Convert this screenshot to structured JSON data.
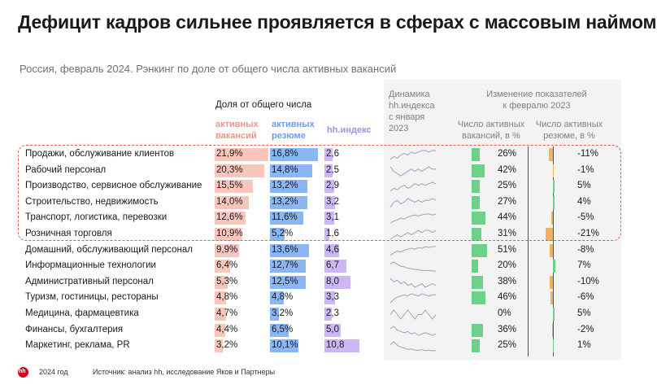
{
  "title": "Дефицит кадров сильнее проявляется в сферах с массовым наймом",
  "subtitle": "Россия, февраль 2024. Рэнкинг по доле от общего числа активных вакансий",
  "headers": {
    "share_group": "Доля от общего числа",
    "vac_line1": "активных",
    "vac_line2": "вакансий",
    "res_line1": "активных",
    "res_line2": "резюме",
    "hh": "hh.индекс",
    "dyn_line1": "Динамика",
    "dyn_line2": "hh.индекса",
    "dyn_line3": "с января",
    "dyn_line4": "2023",
    "change_line1": "Изменение показателей",
    "change_line2": "к февралю 2023",
    "chv_line1": "Число активных",
    "chv_line2": "вакансий, в %",
    "chr_line1": "Число активных",
    "chr_line2": "резюме, в %"
  },
  "colors": {
    "vacancies": "#f9c6bd",
    "resumes": "#8ab6f3",
    "hh_index": "#cbb7f3",
    "change_vacancies": "#6cd28a",
    "change_resumes_neg": "#f5b060",
    "change_resumes_pos": "#6cd28a",
    "highlight_box": "#e65a50"
  },
  "chart_data": {
    "type": "table",
    "title": "Дефицит кадров сильнее проявляется в сферах с массовым наймом",
    "categories": [
      "Продажи, обслуживание клиентов",
      "Рабочий персонал",
      "Производство, сервисное обслуживание",
      "Строительство, недвижимость",
      "Транспорт, логистика, перевозки",
      "Розничная торговля",
      "Домашний, обслуживающий персонал",
      "Информационные технологии",
      "Административный персонал",
      "Туризм, гостиницы, рестораны",
      "Медицина, фармацевтика",
      "Финансы, бухгалтерия",
      "Маркетинг, реклама, PR"
    ],
    "highlighted_rows": 6,
    "series": [
      {
        "name": "активных вакансий",
        "unit": "%",
        "values": [
          21.9,
          20.3,
          15.5,
          14.0,
          12.6,
          10.9,
          9.9,
          6.4,
          5.3,
          4.8,
          4.7,
          4.4,
          3.2
        ],
        "labels": [
          "21,9%",
          "20,3%",
          "15,5%",
          "14,0%",
          "12,6%",
          "10,9%",
          "9,9%",
          "6,4%",
          "5,3%",
          "4,8%",
          "4,7%",
          "4,4%",
          "3,2%"
        ]
      },
      {
        "name": "активных резюме",
        "unit": "%",
        "values": [
          16.8,
          14.8,
          13.2,
          13.2,
          11.6,
          5.2,
          13.6,
          12.7,
          12.5,
          4.8,
          3.2,
          6.5,
          10.1
        ],
        "labels": [
          "16,8%",
          "14,8%",
          "13,2%",
          "13,2%",
          "11,6%",
          "5,2%",
          "13,6%",
          "12,7%",
          "12,5%",
          "4,8%",
          "3,2%",
          "6,5%",
          "10,1%"
        ]
      },
      {
        "name": "hh.индекс",
        "values": [
          2.6,
          2.5,
          2.9,
          3.2,
          3.1,
          1.6,
          4.6,
          6.7,
          8.0,
          3.3,
          2.3,
          5.0,
          10.8
        ],
        "labels": [
          "2,6",
          "2,5",
          "2,9",
          "3,2",
          "3,1",
          "1,6",
          "4,6",
          "6,7",
          "8,0",
          "3,3",
          "2,3",
          "5,0",
          "10,8"
        ]
      },
      {
        "name": "Число активных вакансий, в %",
        "values": [
          26,
          42,
          25,
          27,
          44,
          31,
          51,
          20,
          38,
          46,
          0,
          36,
          25
        ],
        "labels": [
          "26%",
          "42%",
          "25%",
          "27%",
          "44%",
          "31%",
          "51%",
          "20%",
          "38%",
          "46%",
          "0%",
          "36%",
          "25%"
        ]
      },
      {
        "name": "Число активных резюме, в %",
        "values": [
          -11,
          -1,
          5,
          4,
          -5,
          -21,
          -8,
          7,
          -10,
          -6,
          5,
          -2,
          1
        ],
        "labels": [
          "-11%",
          "-1%",
          "5%",
          "4%",
          "-5%",
          "-21%",
          "-8%",
          "7%",
          "-10%",
          "-6%",
          "5%",
          "-2%",
          "1%"
        ]
      }
    ],
    "sparklines": [
      [
        2.0,
        2.2,
        2.1,
        2.3,
        2.4,
        2.3,
        2.5,
        2.4,
        2.5,
        2.6,
        2.6,
        2.5,
        2.6,
        2.6
      ],
      [
        2.6,
        2.4,
        2.3,
        2.2,
        2.3,
        2.4,
        2.5,
        2.4,
        2.5,
        2.4,
        2.5,
        2.6,
        2.5,
        2.5
      ],
      [
        2.4,
        2.6,
        2.5,
        2.7,
        2.8,
        2.6,
        2.7,
        2.9,
        2.8,
        2.9,
        2.8,
        2.9,
        3.0,
        2.9
      ],
      [
        2.8,
        3.1,
        3.2,
        3.0,
        3.1,
        3.3,
        3.2,
        3.1,
        3.2,
        3.1,
        3.2,
        3.2,
        3.3,
        3.2
      ],
      [
        2.2,
        2.4,
        2.5,
        2.7,
        2.6,
        2.8,
        2.9,
        3.0,
        2.9,
        3.0,
        3.1,
        3.1,
        3.0,
        3.1
      ],
      [
        1.2,
        1.3,
        1.4,
        1.3,
        1.4,
        1.5,
        1.4,
        1.5,
        1.6,
        1.5,
        1.6,
        1.6,
        1.5,
        1.6
      ],
      [
        3.6,
        3.9,
        4.1,
        4.0,
        4.2,
        4.3,
        4.4,
        4.3,
        4.5,
        4.4,
        4.6,
        4.5,
        4.6,
        4.6
      ],
      [
        9.0,
        9.5,
        8.8,
        8.2,
        8.0,
        7.6,
        7.4,
        7.2,
        7.1,
        6.9,
        6.8,
        6.9,
        6.7,
        6.7
      ],
      [
        8.4,
        8.2,
        8.3,
        8.1,
        8.2,
        8.0,
        8.1,
        7.9,
        8.0,
        8.1,
        7.9,
        8.0,
        8.1,
        8.0
      ],
      [
        2.6,
        2.9,
        3.1,
        3.2,
        3.3,
        3.2,
        3.4,
        3.3,
        3.2,
        3.4,
        3.3,
        3.2,
        3.3,
        3.3
      ],
      [
        2.3,
        2.4,
        2.3,
        2.2,
        2.3,
        2.4,
        2.3,
        2.2,
        2.3,
        2.3,
        2.4,
        2.3,
        2.2,
        2.3
      ],
      [
        5.4,
        5.6,
        5.3,
        5.2,
        5.1,
        5.2,
        5.0,
        5.1,
        4.9,
        5.0,
        5.1,
        5.0,
        4.9,
        5.0
      ],
      [
        13.0,
        14.2,
        12.8,
        12.1,
        11.8,
        11.2,
        11.4,
        11.0,
        10.9,
        11.1,
        10.8,
        10.9,
        10.7,
        10.8
      ]
    ]
  },
  "footer": {
    "logo_text": "hh",
    "year": "2024 год",
    "source": "Источник: анализ hh, исследование Яков и Партнеры"
  }
}
